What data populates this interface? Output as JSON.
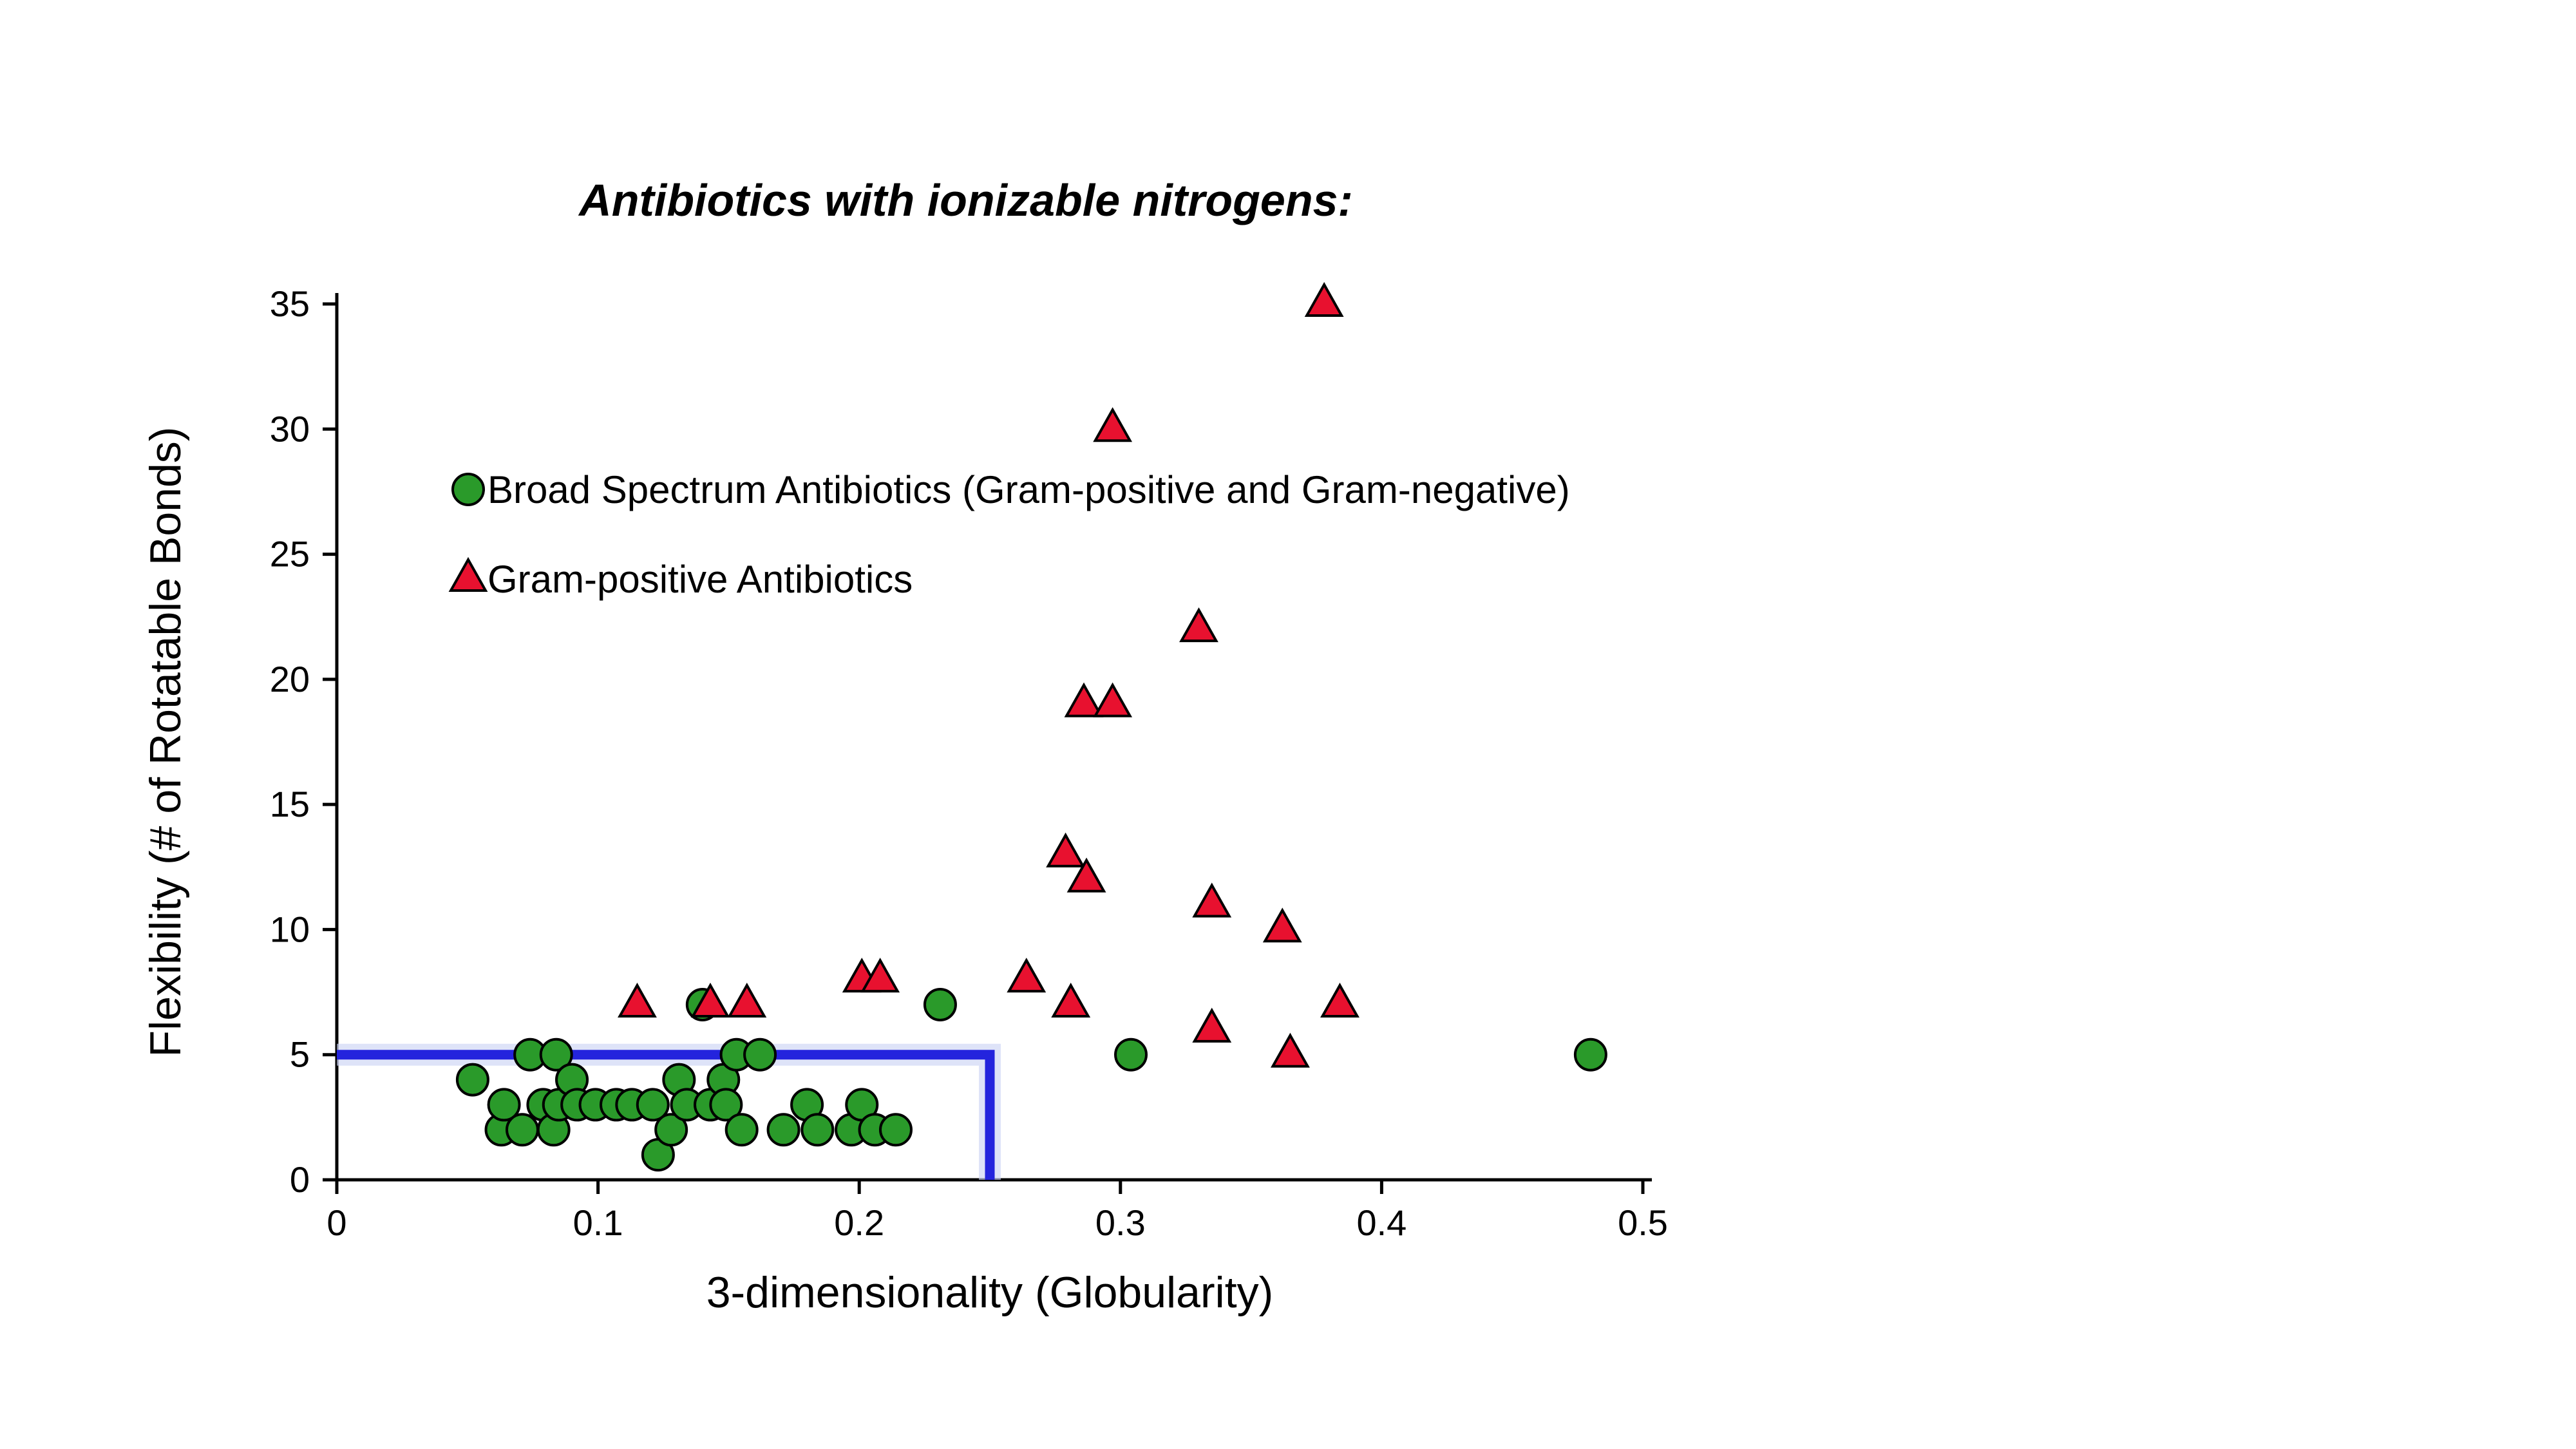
{
  "page": {
    "background": "#ffffff"
  },
  "chart_data": {
    "type": "scatter",
    "title": "Antibiotics with ionizable nitrogens:",
    "xlabel": "3-dimensionality (Globularity)",
    "ylabel": "Flexibility (# of Rotatable Bonds)",
    "xlim": [
      0,
      0.5
    ],
    "ylim": [
      0,
      35
    ],
    "xticks": [
      0,
      0.1,
      0.2,
      0.3,
      0.4,
      0.5
    ],
    "xtick_labels": [
      "0",
      "0.1",
      "0.2",
      "0.3",
      "0.4",
      "0.5"
    ],
    "yticks": [
      0,
      5,
      10,
      15,
      20,
      25,
      30,
      35
    ],
    "ytick_labels": [
      "0",
      "5",
      "10",
      "15",
      "20",
      "25",
      "30",
      "35"
    ],
    "grid": false,
    "legend_position": "inside-upper-left",
    "series": [
      {
        "name": "Broad Spectrum Antibiotics (Gram-positive and Gram-negative)",
        "marker": "circle",
        "fill": "#2a9a2a",
        "stroke": "#000000",
        "points": [
          [
            0.052,
            4
          ],
          [
            0.063,
            2
          ],
          [
            0.064,
            3
          ],
          [
            0.071,
            2
          ],
          [
            0.074,
            5
          ],
          [
            0.079,
            3
          ],
          [
            0.083,
            2
          ],
          [
            0.084,
            5
          ],
          [
            0.085,
            3
          ],
          [
            0.09,
            4
          ],
          [
            0.092,
            3
          ],
          [
            0.099,
            3
          ],
          [
            0.107,
            3
          ],
          [
            0.113,
            3
          ],
          [
            0.121,
            3
          ],
          [
            0.123,
            1
          ],
          [
            0.128,
            2
          ],
          [
            0.131,
            4
          ],
          [
            0.134,
            3
          ],
          [
            0.14,
            7
          ],
          [
            0.143,
            3
          ],
          [
            0.148,
            4
          ],
          [
            0.149,
            3
          ],
          [
            0.153,
            5
          ],
          [
            0.155,
            2
          ],
          [
            0.162,
            5
          ],
          [
            0.171,
            2
          ],
          [
            0.18,
            3
          ],
          [
            0.184,
            2
          ],
          [
            0.197,
            2
          ],
          [
            0.201,
            3
          ],
          [
            0.206,
            2
          ],
          [
            0.214,
            2
          ],
          [
            0.231,
            7
          ],
          [
            0.304,
            5
          ],
          [
            0.48,
            5
          ]
        ]
      },
      {
        "name": "Gram-positive Antibiotics",
        "marker": "triangle",
        "fill": "#e8112f",
        "stroke": "#000000",
        "points": [
          [
            0.115,
            7
          ],
          [
            0.143,
            7
          ],
          [
            0.157,
            7
          ],
          [
            0.201,
            8
          ],
          [
            0.208,
            8
          ],
          [
            0.264,
            8
          ],
          [
            0.279,
            13
          ],
          [
            0.281,
            7
          ],
          [
            0.286,
            19
          ],
          [
            0.287,
            12
          ],
          [
            0.297,
            19
          ],
          [
            0.297,
            30
          ],
          [
            0.33,
            22
          ],
          [
            0.335,
            11
          ],
          [
            0.335,
            6
          ],
          [
            0.362,
            10
          ],
          [
            0.365,
            5
          ],
          [
            0.378,
            35
          ],
          [
            0.384,
            7
          ]
        ]
      }
    ],
    "threshold_box": {
      "x_max": 0.25,
      "y_max": 5,
      "color": "#2424dd",
      "halo_color": "#ccd4f4"
    }
  }
}
